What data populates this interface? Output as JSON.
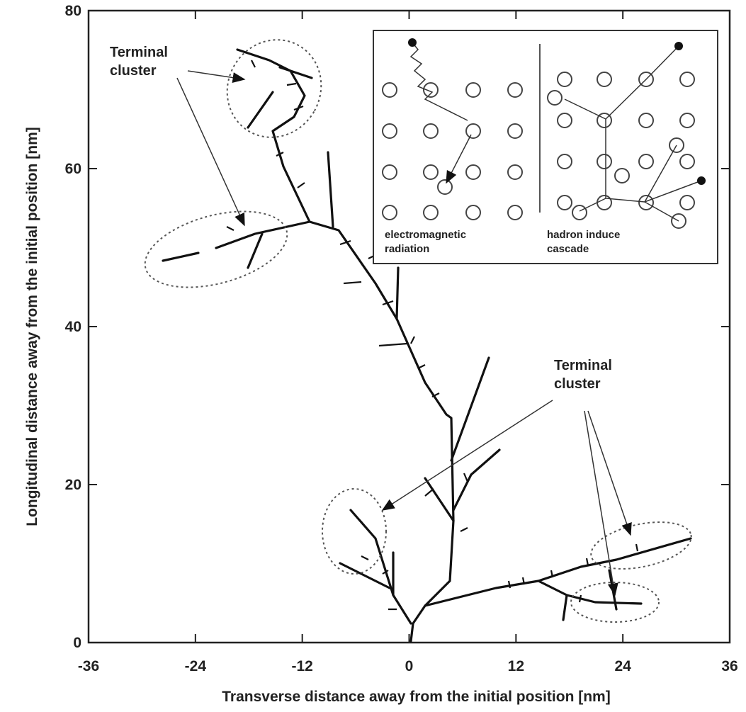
{
  "chart_data": {
    "type": "track",
    "x_label": "Transverse distance away from the initial position [nm]",
    "y_label": "Longitudinal distance away from the initial position [nm]",
    "xlim": [
      -36,
      36
    ],
    "xticks": [
      -36,
      -24,
      -12,
      0,
      12,
      24,
      36
    ],
    "ylim": [
      0,
      80
    ],
    "yticks": [
      0,
      20,
      40,
      60,
      80
    ],
    "annotations": [
      {
        "lines": [
          "Terminal",
          "cluster"
        ]
      },
      {
        "lines": [
          "Terminal",
          "cluster"
        ]
      }
    ],
    "inset_labels": [
      {
        "lines": [
          "electromagnetic",
          "radiation"
        ]
      },
      {
        "lines": [
          "hadron induce",
          "cascade"
        ]
      }
    ]
  }
}
